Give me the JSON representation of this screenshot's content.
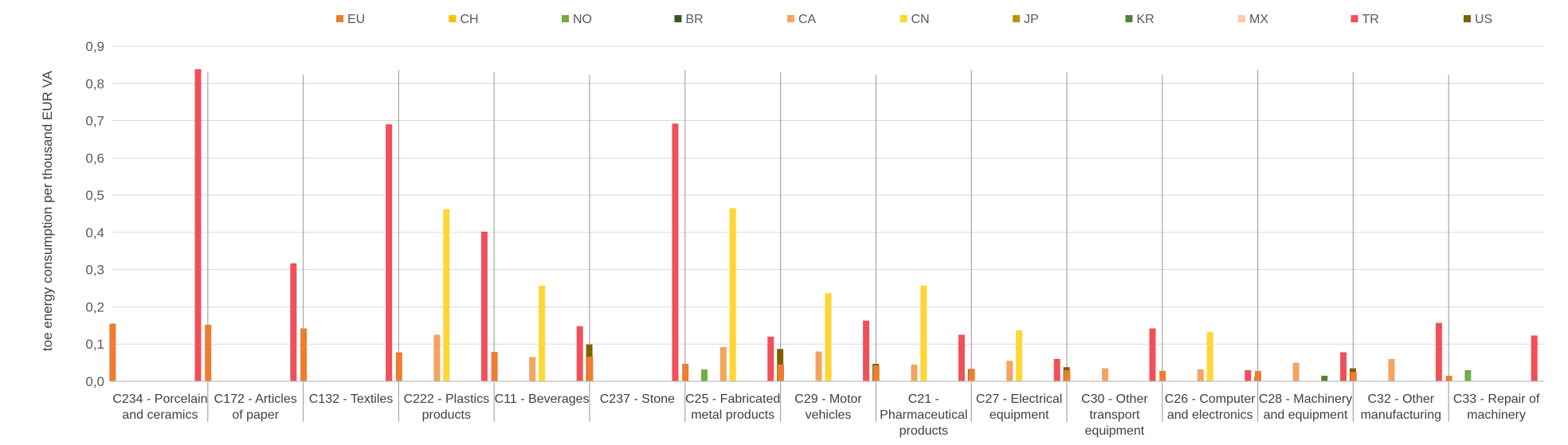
{
  "chart_data": {
    "type": "bar",
    "title": "",
    "xlabel": "",
    "ylabel": "toe energy consumption per thousand EUR VA",
    "ylim": [
      0,
      0.9
    ],
    "yticks": [
      "0,0",
      "0,1",
      "0,2",
      "0,3",
      "0,4",
      "0,5",
      "0,6",
      "0,7",
      "0,8",
      "0,9"
    ],
    "grid": true,
    "legend_position": "top",
    "categories": [
      [
        "C234 - Porcelain",
        "and ceramics"
      ],
      [
        "C172 - Articles",
        "of paper"
      ],
      [
        "C132 - Textiles"
      ],
      [
        "C222 - Plastics",
        "products"
      ],
      [
        "C11 - Beverages"
      ],
      [
        "C237 - Stone"
      ],
      [
        "C25 - Fabricated",
        "metal products"
      ],
      [
        "C29 - Motor",
        "vehicles"
      ],
      [
        "C21 -",
        "Pharmaceutical",
        "products"
      ],
      [
        "C27 - Electrical",
        "equipment"
      ],
      [
        "C30 - Other",
        "transport",
        "equipment"
      ],
      [
        "C26 - Computer",
        "and electronics"
      ],
      [
        "C28 - Machinery",
        "and equipment"
      ],
      [
        "C32 - Other",
        "manufacturing"
      ],
      [
        "C33 - Repair of",
        "machinery"
      ]
    ],
    "series": [
      {
        "name": "EU",
        "color": "#ED7D31",
        "values": [
          0.155,
          0.152,
          0.142,
          0.078,
          0.079,
          0.066,
          0.047,
          0.045,
          0.043,
          0.032,
          0.03,
          0.028,
          0.028,
          0.025,
          0.015
        ]
      },
      {
        "name": "CH",
        "color": "#FFC000",
        "values": [
          null,
          null,
          null,
          null,
          null,
          null,
          null,
          null,
          null,
          null,
          null,
          null,
          null,
          null,
          null
        ]
      },
      {
        "name": "NO",
        "color": "#70AD47",
        "values": [
          null,
          null,
          null,
          null,
          null,
          null,
          0.032,
          null,
          null,
          null,
          null,
          null,
          null,
          null,
          0.03
        ]
      },
      {
        "name": "BR",
        "color": "#375623",
        "values": [
          null,
          null,
          null,
          null,
          null,
          null,
          null,
          null,
          null,
          null,
          null,
          null,
          null,
          null,
          null
        ]
      },
      {
        "name": "CA",
        "color": "#F4A460",
        "values": [
          null,
          null,
          null,
          0.125,
          0.065,
          null,
          0.092,
          0.08,
          0.045,
          0.055,
          0.035,
          0.032,
          0.05,
          0.06,
          null
        ]
      },
      {
        "name": "CN",
        "color": "#FFD633",
        "values": [
          null,
          null,
          null,
          0.462,
          0.257,
          null,
          0.465,
          0.237,
          0.257,
          0.137,
          null,
          0.132,
          null,
          null,
          null
        ]
      },
      {
        "name": "JP",
        "color": "#BF9000",
        "values": [
          null,
          null,
          null,
          null,
          null,
          null,
          null,
          null,
          null,
          null,
          null,
          null,
          null,
          null,
          null
        ]
      },
      {
        "name": "KR",
        "color": "#548235",
        "values": [
          null,
          null,
          null,
          null,
          null,
          null,
          null,
          null,
          null,
          null,
          null,
          null,
          0.015,
          null,
          null
        ]
      },
      {
        "name": "MX",
        "color": "#F8CBAD",
        "values": [
          null,
          null,
          null,
          null,
          null,
          null,
          null,
          null,
          null,
          null,
          null,
          null,
          null,
          null,
          null
        ]
      },
      {
        "name": "TR",
        "color": "#F0505A",
        "values": [
          0.838,
          0.317,
          0.69,
          0.402,
          0.148,
          0.692,
          0.12,
          0.163,
          0.125,
          0.06,
          0.142,
          0.03,
          0.078,
          0.157,
          0.123
        ]
      },
      {
        "name": "US",
        "color": "#7F6000",
        "values": [
          null,
          null,
          null,
          null,
          0.099,
          null,
          0.087,
          0.047,
          0.033,
          0.038,
          null,
          0.012,
          0.035,
          null,
          null
        ]
      }
    ]
  }
}
